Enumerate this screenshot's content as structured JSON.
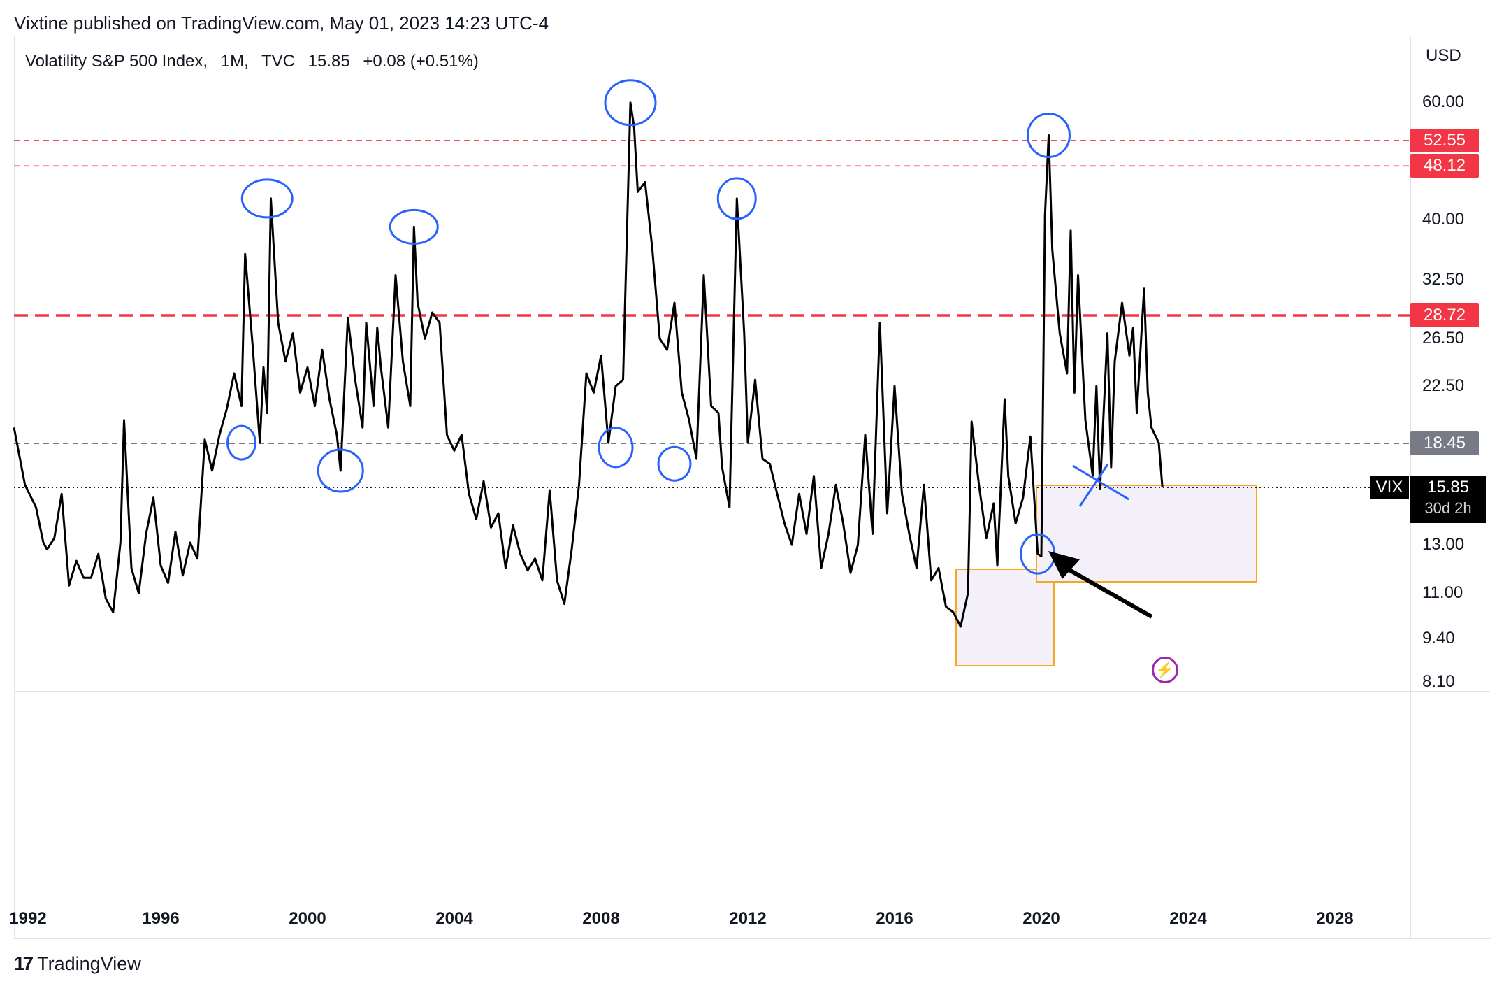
{
  "header": {
    "publisher_line": "Vixtine published on TradingView.com, May 01, 2023 14:23 UTC-4"
  },
  "legend": {
    "symbol_name": "Volatility S&P 500 Index",
    "interval": "1M",
    "exchange": "TVC",
    "last": "15.85",
    "change": "+0.08 (+0.51%)"
  },
  "price_axis": {
    "currency": "USD",
    "ticks": [
      "60.00",
      "40.00",
      "32.50",
      "26.50",
      "22.50",
      "13.00",
      "11.00",
      "9.40",
      "8.10"
    ]
  },
  "levels": [
    {
      "value": "52.55",
      "color": "#f23645",
      "style": "dashed-thin"
    },
    {
      "value": "48.12",
      "color": "#f23645",
      "style": "dashed-thin"
    },
    {
      "value": "28.72",
      "color": "#f23645",
      "style": "dashed-thick"
    },
    {
      "value": "18.45",
      "color": "#787b86",
      "style": "dashed-thin"
    }
  ],
  "current": {
    "symbol": "VIX",
    "price": "15.85",
    "countdown": "30d 2h"
  },
  "time_axis": {
    "labels": [
      "1992",
      "1996",
      "2000",
      "2004",
      "2008",
      "2012",
      "2016",
      "2020",
      "2024",
      "2028"
    ]
  },
  "footer": {
    "brand": "TradingView",
    "logo_mark": "17"
  },
  "colors": {
    "line": "#000000",
    "annotation_circle": "#2962ff",
    "box_border": "#f5a623",
    "box_fill": "#f3f0fa",
    "level_red": "#f23645",
    "level_grey": "#787b86",
    "bolt": "#9c27b0"
  },
  "chart_data": {
    "type": "line",
    "title": "Volatility S&P 500 Index, 1M, TVC",
    "xlabel": "",
    "ylabel": "",
    "log_scale": true,
    "ylim": [
      7.5,
      70
    ],
    "xlim": [
      1992.0,
      2030.0
    ],
    "series": [
      {
        "name": "VIX",
        "points": [
          [
            1992.0,
            19.5
          ],
          [
            1992.3,
            16.0
          ],
          [
            1992.6,
            14.8
          ],
          [
            1992.8,
            13.1
          ],
          [
            1992.9,
            12.8
          ],
          [
            1993.1,
            13.3
          ],
          [
            1993.3,
            15.5
          ],
          [
            1993.5,
            11.3
          ],
          [
            1993.7,
            12.3
          ],
          [
            1993.9,
            11.6
          ],
          [
            1994.1,
            11.6
          ],
          [
            1994.3,
            12.6
          ],
          [
            1994.5,
            10.8
          ],
          [
            1994.7,
            10.3
          ],
          [
            1994.9,
            13.1
          ],
          [
            1995.0,
            20.0
          ],
          [
            1995.2,
            12.0
          ],
          [
            1995.4,
            11.0
          ],
          [
            1995.6,
            13.5
          ],
          [
            1995.8,
            15.3
          ],
          [
            1996.0,
            12.1
          ],
          [
            1996.2,
            11.4
          ],
          [
            1996.4,
            13.6
          ],
          [
            1996.6,
            11.7
          ],
          [
            1996.8,
            13.1
          ],
          [
            1997.0,
            12.4
          ],
          [
            1997.2,
            18.7
          ],
          [
            1997.4,
            16.8
          ],
          [
            1997.6,
            19.0
          ],
          [
            1997.8,
            20.8
          ],
          [
            1998.0,
            23.5
          ],
          [
            1998.2,
            21.0
          ],
          [
            1998.3,
            35.5
          ],
          [
            1998.5,
            26.0
          ],
          [
            1998.7,
            18.5
          ],
          [
            1998.8,
            24.0
          ],
          [
            1998.9,
            20.5
          ],
          [
            1999.0,
            43.0
          ],
          [
            1999.2,
            28.0
          ],
          [
            1999.4,
            24.5
          ],
          [
            1999.6,
            27.0
          ],
          [
            1999.8,
            22.0
          ],
          [
            2000.0,
            24.0
          ],
          [
            2000.2,
            21.0
          ],
          [
            2000.4,
            25.5
          ],
          [
            2000.6,
            21.5
          ],
          [
            2000.8,
            19.0
          ],
          [
            2000.9,
            16.8
          ],
          [
            2001.1,
            28.5
          ],
          [
            2001.3,
            23.0
          ],
          [
            2001.5,
            19.5
          ],
          [
            2001.6,
            28.0
          ],
          [
            2001.8,
            21.0
          ],
          [
            2001.9,
            27.5
          ],
          [
            2002.0,
            24.0
          ],
          [
            2002.2,
            19.5
          ],
          [
            2002.4,
            33.0
          ],
          [
            2002.6,
            24.5
          ],
          [
            2002.8,
            21.0
          ],
          [
            2002.9,
            39.0
          ],
          [
            2003.0,
            30.0
          ],
          [
            2003.2,
            26.5
          ],
          [
            2003.4,
            29.0
          ],
          [
            2003.6,
            28.0
          ],
          [
            2003.8,
            19.0
          ],
          [
            2004.0,
            18.0
          ],
          [
            2004.2,
            19.0
          ],
          [
            2004.4,
            15.5
          ],
          [
            2004.6,
            14.2
          ],
          [
            2004.8,
            16.2
          ],
          [
            2005.0,
            13.8
          ],
          [
            2005.2,
            14.5
          ],
          [
            2005.4,
            12.0
          ],
          [
            2005.6,
            13.9
          ],
          [
            2005.8,
            12.6
          ],
          [
            2006.0,
            11.9
          ],
          [
            2006.2,
            12.4
          ],
          [
            2006.4,
            11.5
          ],
          [
            2006.6,
            15.7
          ],
          [
            2006.8,
            11.5
          ],
          [
            2007.0,
            10.6
          ],
          [
            2007.2,
            12.8
          ],
          [
            2007.4,
            16.0
          ],
          [
            2007.6,
            23.5
          ],
          [
            2007.8,
            22.0
          ],
          [
            2008.0,
            25.0
          ],
          [
            2008.2,
            18.5
          ],
          [
            2008.4,
            22.5
          ],
          [
            2008.6,
            23.0
          ],
          [
            2008.8,
            59.9
          ],
          [
            2008.9,
            55.0
          ],
          [
            2009.0,
            44.0
          ],
          [
            2009.2,
            45.5
          ],
          [
            2009.4,
            36.0
          ],
          [
            2009.6,
            26.5
          ],
          [
            2009.8,
            25.5
          ],
          [
            2010.0,
            30.0
          ],
          [
            2010.2,
            22.0
          ],
          [
            2010.4,
            20.0
          ],
          [
            2010.6,
            17.5
          ],
          [
            2010.8,
            33.0
          ],
          [
            2011.0,
            21.0
          ],
          [
            2011.2,
            20.5
          ],
          [
            2011.3,
            17.0
          ],
          [
            2011.5,
            14.8
          ],
          [
            2011.7,
            43.0
          ],
          [
            2011.9,
            27.0
          ],
          [
            2012.0,
            18.5
          ],
          [
            2012.2,
            23.0
          ],
          [
            2012.4,
            17.5
          ],
          [
            2012.6,
            17.2
          ],
          [
            2012.8,
            15.5
          ],
          [
            2013.0,
            14.0
          ],
          [
            2013.2,
            13.0
          ],
          [
            2013.4,
            15.5
          ],
          [
            2013.6,
            13.5
          ],
          [
            2013.8,
            16.5
          ],
          [
            2014.0,
            12.0
          ],
          [
            2014.2,
            13.5
          ],
          [
            2014.4,
            16.0
          ],
          [
            2014.6,
            14.0
          ],
          [
            2014.8,
            11.8
          ],
          [
            2015.0,
            13.0
          ],
          [
            2015.2,
            19.0
          ],
          [
            2015.4,
            13.5
          ],
          [
            2015.6,
            28.0
          ],
          [
            2015.8,
            14.5
          ],
          [
            2016.0,
            22.5
          ],
          [
            2016.2,
            15.5
          ],
          [
            2016.4,
            13.5
          ],
          [
            2016.6,
            12.0
          ],
          [
            2016.8,
            16.0
          ],
          [
            2017.0,
            11.5
          ],
          [
            2017.2,
            12.0
          ],
          [
            2017.4,
            10.5
          ],
          [
            2017.6,
            10.3
          ],
          [
            2017.8,
            9.8
          ],
          [
            2018.0,
            11.0
          ],
          [
            2018.1,
            19.9
          ],
          [
            2018.3,
            16.0
          ],
          [
            2018.5,
            13.3
          ],
          [
            2018.7,
            15.0
          ],
          [
            2018.8,
            12.1
          ],
          [
            2019.0,
            21.5
          ],
          [
            2019.1,
            16.5
          ],
          [
            2019.3,
            14.0
          ],
          [
            2019.5,
            15.3
          ],
          [
            2019.7,
            18.9
          ],
          [
            2019.9,
            12.6
          ],
          [
            2020.0,
            12.5
          ],
          [
            2020.1,
            40.5
          ],
          [
            2020.2,
            53.5
          ],
          [
            2020.3,
            36.0
          ],
          [
            2020.5,
            27.0
          ],
          [
            2020.7,
            23.5
          ],
          [
            2020.8,
            38.5
          ],
          [
            2020.9,
            22.0
          ],
          [
            2021.0,
            33.0
          ],
          [
            2021.2,
            20.0
          ],
          [
            2021.4,
            16.5
          ],
          [
            2021.5,
            22.5
          ],
          [
            2021.6,
            15.8
          ],
          [
            2021.8,
            27.0
          ],
          [
            2021.9,
            17.0
          ],
          [
            2022.0,
            24.5
          ],
          [
            2022.2,
            30.0
          ],
          [
            2022.4,
            25.0
          ],
          [
            2022.5,
            27.5
          ],
          [
            2022.6,
            20.5
          ],
          [
            2022.8,
            31.5
          ],
          [
            2022.9,
            22.0
          ],
          [
            2023.0,
            19.5
          ],
          [
            2023.2,
            18.5
          ],
          [
            2023.3,
            15.85
          ]
        ]
      }
    ],
    "levels": [
      52.55,
      48.12,
      28.72,
      18.45
    ],
    "current_value": 15.85
  }
}
